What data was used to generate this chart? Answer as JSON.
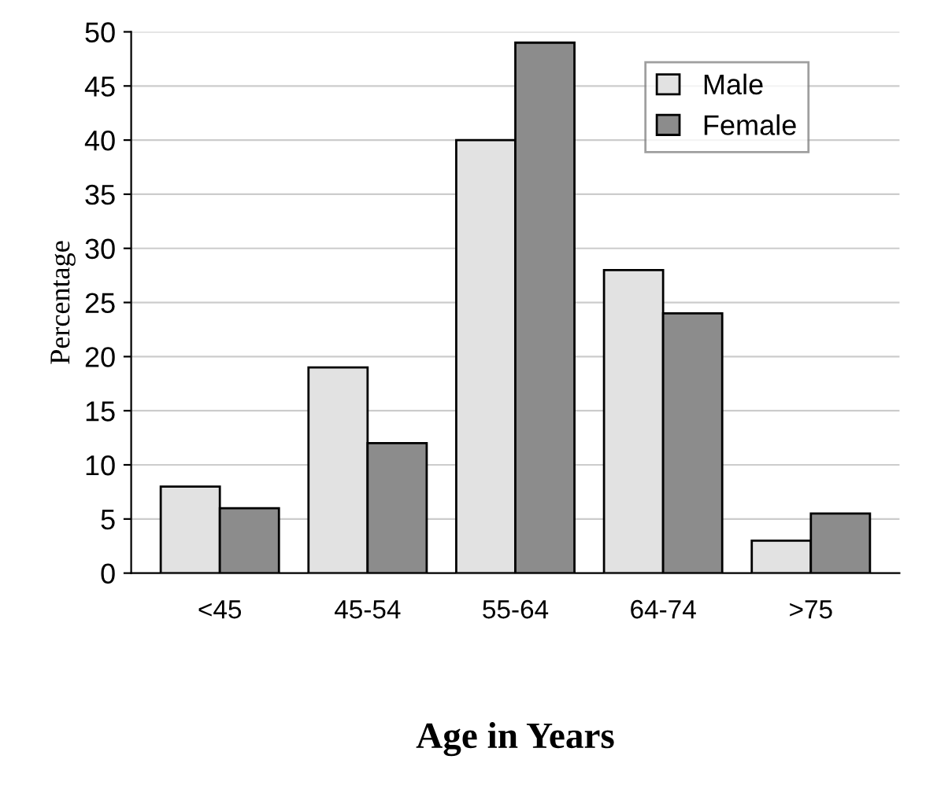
{
  "chart_data": {
    "type": "bar",
    "xlabel": "Age in Years",
    "ylabel": "Percentage",
    "categories": [
      "<45",
      "45-54",
      "55-64",
      "64-74",
      ">75"
    ],
    "series": [
      {
        "name": "Male",
        "color": "#e2e2e2",
        "values": [
          8,
          19,
          40,
          28,
          3
        ]
      },
      {
        "name": "Female",
        "color": "#8c8c8c",
        "values": [
          6,
          12,
          49,
          24,
          5.5
        ]
      }
    ],
    "ylim": [
      0,
      50
    ],
    "yticks": [
      0,
      5,
      10,
      15,
      20,
      25,
      30,
      35,
      40,
      45,
      50
    ],
    "grid": "y",
    "legend": "top right"
  }
}
